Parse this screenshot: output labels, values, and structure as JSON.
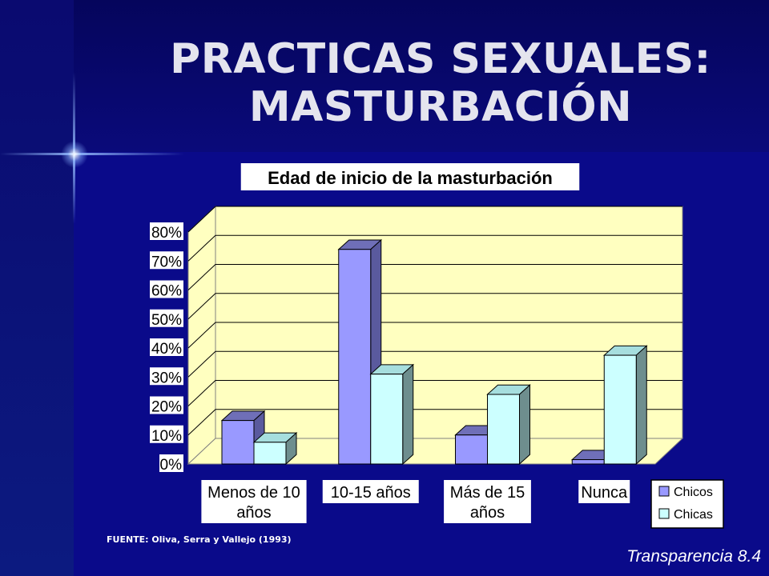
{
  "slide": {
    "title_line1": "PRACTICAS SEXUALES:",
    "title_line2": "MASTURBACIÓN",
    "source": "FUENTE: Oliva, Serra y Vallejo  (1993)",
    "footer": "Transparencia 8.4"
  },
  "chart_data": {
    "type": "bar",
    "title": "Edad de inicio de la masturbación",
    "categories": [
      [
        "Menos de 10",
        "años"
      ],
      [
        "10-15 años"
      ],
      [
        "Más de 15",
        "años"
      ],
      [
        "Nunca"
      ]
    ],
    "series": [
      {
        "name": "Chicos",
        "values": [
          15,
          74,
          10,
          1.5
        ],
        "color": "#9999ff"
      },
      {
        "name": "Chicas",
        "values": [
          7.5,
          31,
          24,
          37.5
        ],
        "color": "#ccffff"
      }
    ],
    "y_ticks": [
      "0%",
      "10%",
      "20%",
      "30%",
      "40%",
      "50%",
      "60%",
      "70%",
      "80%"
    ],
    "ylim": [
      0,
      80
    ],
    "grid": true,
    "legend": "bottom-right",
    "colors": {
      "wall": "#ffffc0",
      "floor_side": "#9a9a6e",
      "box_border": "#000000"
    }
  }
}
